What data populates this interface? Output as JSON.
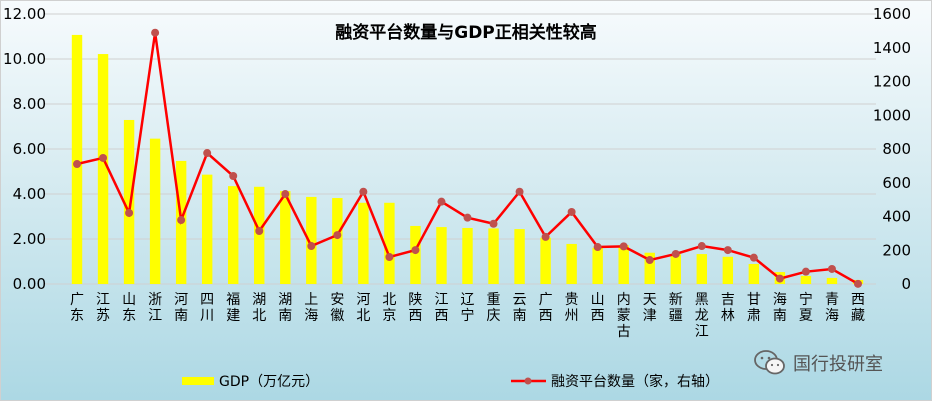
{
  "chart_data": {
    "type": "bar+line",
    "title": "融资平台数量与GDP正相关性较高",
    "categories": [
      "广东",
      "江苏",
      "山东",
      "浙江",
      "河南",
      "四川",
      "福建",
      "湖北",
      "湖南",
      "上海",
      "安徽",
      "河北",
      "北京",
      "陕西",
      "江西",
      "辽宁",
      "重庆",
      "云南",
      "广西",
      "贵州",
      "山西",
      "内蒙古",
      "天津",
      "新疆",
      "黑龙江",
      "吉林",
      "甘肃",
      "海南",
      "宁夏",
      "青海",
      "西藏"
    ],
    "series": [
      {
        "name": "GDP（万亿元）",
        "type": "bar",
        "axis": "left",
        "color": "#ffff00",
        "values": [
          11.07,
          10.22,
          7.29,
          6.46,
          5.47,
          4.86,
          4.35,
          4.32,
          4.13,
          3.87,
          3.82,
          3.61,
          3.61,
          2.58,
          2.53,
          2.49,
          2.47,
          2.44,
          2.06,
          1.78,
          1.61,
          1.72,
          1.39,
          1.32,
          1.33,
          1.21,
          0.89,
          0.53,
          0.36,
          0.27,
          0.18
        ]
      },
      {
        "name": "融资平台数量（家，右轴）",
        "type": "line",
        "axis": "right",
        "color": "#ff0000",
        "marker_color": "#c0504d",
        "values": [
          711,
          747,
          421,
          1489,
          379,
          776,
          640,
          314,
          533,
          225,
          290,
          547,
          160,
          201,
          488,
          393,
          357,
          547,
          279,
          427,
          219,
          223,
          142,
          178,
          225,
          201,
          156,
          32,
          73,
          89,
          1
        ]
      }
    ],
    "left_axis": {
      "ylim": [
        0,
        12
      ],
      "ticks": [
        "0.00",
        "2.00",
        "4.00",
        "6.00",
        "8.00",
        "10.00",
        "12.00"
      ]
    },
    "right_axis": {
      "ylim": [
        0,
        1600
      ],
      "ticks": [
        "0",
        "200",
        "400",
        "600",
        "800",
        "1000",
        "1200",
        "1400",
        "1600"
      ]
    },
    "grid": true,
    "legend": "bottom"
  },
  "watermark": {
    "text": "国行投研室",
    "icon": "wechat-icon"
  }
}
